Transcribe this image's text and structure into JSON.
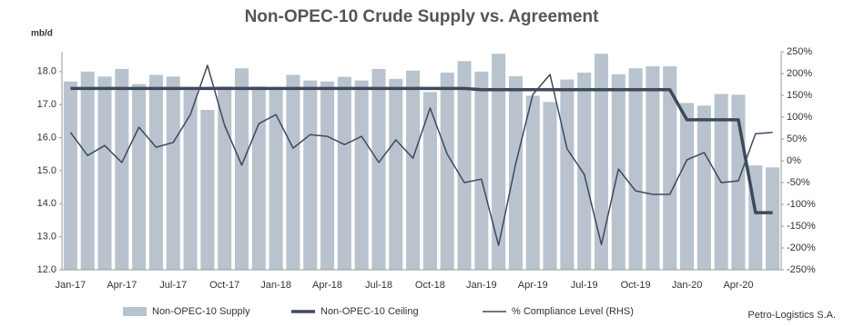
{
  "chart_data": {
    "type": "combo",
    "title": "Non-OPEC-10 Crude Supply vs. Agreement",
    "ylabel": "mb/d",
    "source": "Petro-Logistics S.A.",
    "categories": [
      "Jan-17",
      null,
      null,
      "Apr-17",
      null,
      null,
      "Jul-17",
      null,
      null,
      "Oct-17",
      null,
      null,
      "Jan-18",
      null,
      null,
      "Apr-18",
      null,
      null,
      "Jul-18",
      null,
      null,
      "Oct-18",
      null,
      null,
      "Jan-19",
      null,
      null,
      "Apr-19",
      null,
      null,
      "Jul-19",
      null,
      null,
      "Oct-19",
      null,
      null,
      "Jan-20",
      null,
      null,
      "Apr-20",
      null,
      null
    ],
    "ylim": [
      12,
      18.6
    ],
    "yticks": [
      {
        "value": 12,
        "label": "12.0"
      },
      {
        "value": 13,
        "label": "13.0"
      },
      {
        "value": 14,
        "label": "14.0"
      },
      {
        "value": 15,
        "label": "15.0"
      },
      {
        "value": 16,
        "label": "16.0"
      },
      {
        "value": 17,
        "label": "17.0"
      },
      {
        "value": 18,
        "label": "18.0"
      }
    ],
    "y2lim": [
      -250,
      250
    ],
    "y2ticks": [
      {
        "value": -250,
        "label": "-250%"
      },
      {
        "value": -200,
        "label": "-200%"
      },
      {
        "value": -150,
        "label": "-150%"
      },
      {
        "value": -100,
        "label": "-100%"
      },
      {
        "value": -50,
        "label": "-50%"
      },
      {
        "value": 0,
        "label": "0%"
      },
      {
        "value": 50,
        "label": "50%"
      },
      {
        "value": 100,
        "label": "100%"
      },
      {
        "value": 150,
        "label": "150%"
      },
      {
        "value": 200,
        "label": "200%"
      },
      {
        "value": 250,
        "label": "250%"
      }
    ],
    "series": [
      {
        "name": "Non-OPEC-10 Supply",
        "type": "bar",
        "color": "#b8c3cd",
        "values": [
          17.7,
          18.0,
          17.85,
          18.08,
          17.62,
          17.9,
          17.85,
          17.5,
          16.84,
          17.55,
          18.1,
          17.55,
          17.52,
          17.9,
          17.73,
          17.7,
          17.84,
          17.73,
          18.08,
          17.78,
          18.03,
          17.38,
          17.97,
          18.32,
          18.0,
          18.54,
          17.86,
          17.27,
          17.08,
          17.76,
          17.97,
          18.54,
          17.92,
          18.1,
          18.16,
          18.16,
          17.05,
          16.97,
          17.32,
          17.3,
          15.16,
          15.1
        ]
      },
      {
        "name": "Non-OPEC-10 Ceiling",
        "type": "line",
        "color": "#3e4a5b",
        "width": 3.5,
        "values": [
          17.49,
          17.49,
          17.49,
          17.49,
          17.49,
          17.49,
          17.49,
          17.49,
          17.49,
          17.49,
          17.49,
          17.49,
          17.49,
          17.49,
          17.49,
          17.49,
          17.49,
          17.49,
          17.49,
          17.49,
          17.49,
          17.49,
          17.49,
          17.49,
          17.45,
          17.45,
          17.45,
          17.45,
          17.45,
          17.45,
          17.45,
          17.45,
          17.45,
          17.45,
          17.45,
          17.45,
          16.54,
          16.54,
          16.54,
          16.54,
          13.73,
          13.73
        ]
      },
      {
        "name": "% Compliance Level (RHS)",
        "type": "line",
        "axis": "y2",
        "color": "#3e4a5b",
        "width": 1.5,
        "values": [
          65,
          12,
          35,
          -4,
          77,
          31,
          42,
          106,
          219,
          81,
          -10,
          85,
          106,
          29,
          60,
          56,
          37,
          56,
          -4,
          48,
          6,
          121,
          15,
          -50,
          -42,
          -194,
          -6,
          152,
          198,
          27,
          -31,
          -192,
          -19,
          -69,
          -77,
          -77,
          2,
          19,
          -50,
          -46,
          62,
          65
        ]
      }
    ]
  }
}
